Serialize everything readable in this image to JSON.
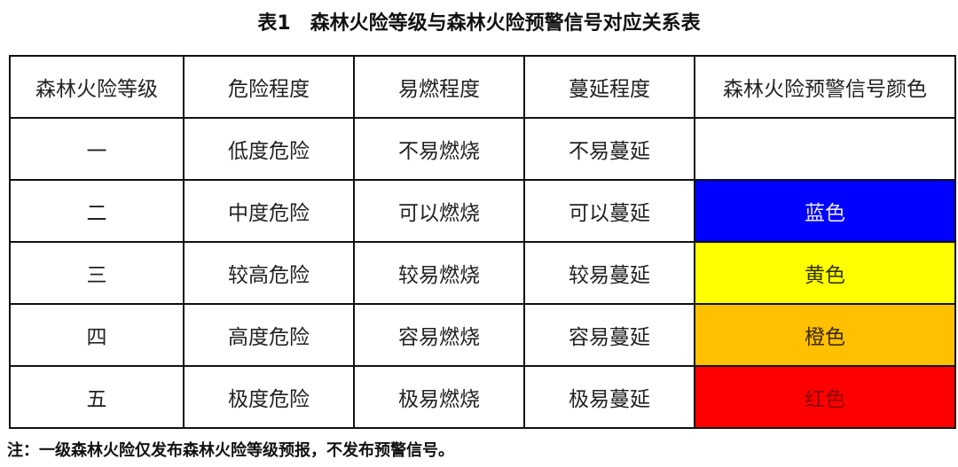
{
  "title": "表1　森林火险等级与森林火险预警信号对应关系表",
  "headers": [
    "森林火险等级",
    "危险程度",
    "易燃程度",
    "蔓延程度",
    "森林火险预警信号颜色"
  ],
  "rows": [
    [
      "一",
      "低度危险",
      "不易燃烧",
      "不易蔓延",
      ""
    ],
    [
      "二",
      "中度危险",
      "可以燃烧",
      "可以蔓延",
      "蓝色"
    ],
    [
      "三",
      "较高危险",
      "较易燃烧",
      "较易蔓延",
      "黄色"
    ],
    [
      "四",
      "高度危险",
      "容易燃烧",
      "容易蔓延",
      "橙色"
    ],
    [
      "五",
      "极度危险",
      "极易燃烧",
      "极易蔓延",
      "红色"
    ]
  ],
  "signal_colors": [
    "#ffffff",
    "#0000ff",
    "#ffff00",
    "#ffc000",
    "#ff0000"
  ],
  "signal_text_colors": [
    "#222222",
    "#e8e8ff",
    "#333300",
    "#3a2a00",
    "#8b0000"
  ],
  "note": "注：一级森林火险仅发布森林火险等级预报，不发布预警信号。"
}
